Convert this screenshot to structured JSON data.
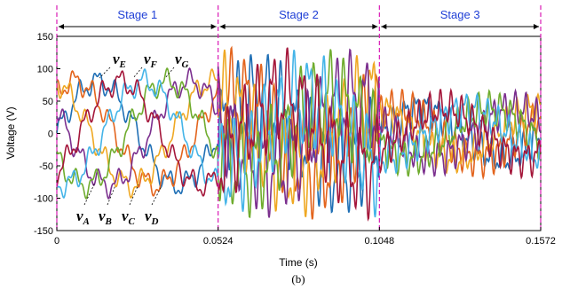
{
  "caption": "(b)",
  "chart_data": {
    "type": "line",
    "xlabel": "Time (s)",
    "ylabel": "Voltage (V)",
    "xlim": [
      0,
      0.1572
    ],
    "ylim": [
      -150,
      150
    ],
    "x_ticks": [
      "0",
      "0.0524",
      "0.1048",
      "0.1572"
    ],
    "y_ticks": [
      "-150",
      "-100",
      "-50",
      "0",
      "50",
      "100",
      "150"
    ],
    "stages": [
      {
        "label": "Stage 1",
        "start": 0,
        "end": 0.0524
      },
      {
        "label": "Stage 2",
        "start": 0.0524,
        "end": 0.1048
      },
      {
        "label": "Stage 3",
        "start": 0.1048,
        "end": 0.1572
      }
    ],
    "stage_boundaries": [
      0,
      0.0524,
      0.1048,
      0.1572
    ],
    "annotations_top": [
      {
        "base": "v",
        "sub": "E"
      },
      {
        "base": "v",
        "sub": "F"
      },
      {
        "base": "v",
        "sub": "G"
      }
    ],
    "annotations_bottom": [
      {
        "base": "v",
        "sub": "A"
      },
      {
        "base": "v",
        "sub": "B"
      },
      {
        "base": "v",
        "sub": "C"
      },
      {
        "base": "v",
        "sub": "D"
      }
    ],
    "series": [
      {
        "color": "#1f6fb5",
        "stage_amplitudes": [
          80,
          100,
          55
        ],
        "phase_deg": 0
      },
      {
        "color": "#e3641d",
        "stage_amplitudes": [
          80,
          100,
          55
        ],
        "phase_deg": 51
      },
      {
        "color": "#efa823",
        "stage_amplitudes": [
          80,
          100,
          55
        ],
        "phase_deg": 103
      },
      {
        "color": "#7b2f8e",
        "stage_amplitudes": [
          80,
          100,
          55
        ],
        "phase_deg": 154
      },
      {
        "color": "#6fac2e",
        "stage_amplitudes": [
          80,
          100,
          55
        ],
        "phase_deg": 206
      },
      {
        "color": "#44b4e8",
        "stage_amplitudes": [
          80,
          100,
          55
        ],
        "phase_deg": 257
      },
      {
        "color": "#a4163a",
        "stage_amplitudes": [
          80,
          100,
          55
        ],
        "phase_deg": 309
      }
    ],
    "fundamental_hz": 19,
    "grid": false,
    "legend": "none"
  }
}
